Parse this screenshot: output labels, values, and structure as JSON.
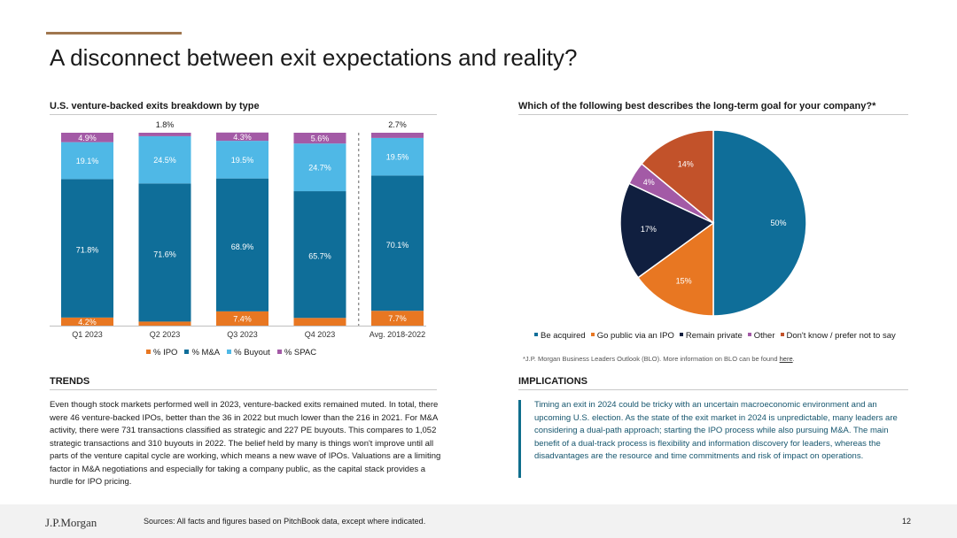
{
  "page": {
    "title": "A disconnect between exit expectations and reality?",
    "page_number": "12"
  },
  "left_chart_heading": "U.S. venture-backed exits breakdown by type",
  "right_chart_heading": "Which of the following best describes the long-term goal for your company?*",
  "trends": {
    "heading": "TRENDS",
    "text": "Even though stock markets performed well in 2023, venture-backed exits remained muted. In total, there were 46 venture-backed IPOs, better than the 36 in 2022 but much lower than the 216 in 2021. For M&A activity, there were 731 transactions classified as strategic and 227 PE buyouts. This compares to 1,052 strategic transactions and 310 buyouts in 2022. The belief held by many is things won't improve until all parts of the venture capital cycle are working, which means a new wave of IPOs. Valuations are a limiting factor in M&A negotiations and especially for taking a company public, as the capital stack provides a hurdle for IPO pricing."
  },
  "implications": {
    "heading": "IMPLICATIONS",
    "text": "Timing an exit in 2024 could be tricky with an uncertain macroeconomic environment and an upcoming U.S. election. As the state of the exit market in 2024 is unpredictable, many leaders are considering a dual-path approach; starting the IPO process while also pursuing M&A. The main benefit of a dual-track process is flexibility and information discovery for leaders, whereas the disadvantages are the resource and time commitments and risk of impact on operations."
  },
  "survey_note": {
    "text": "*J.P. Morgan Business Leaders Outlook (BLO). More information on BLO can be found ",
    "link": "here",
    "end": "."
  },
  "footer": {
    "logo": "J.P.Morgan",
    "sources": "Sources: All facts and figures based on PitchBook data, except where indicated."
  },
  "chart_data": [
    {
      "type": "bar",
      "stacked": true,
      "categories": [
        "Q1 2023",
        "Q2 2023",
        "Q3 2023",
        "Q4 2023",
        "Avg. 2018-2022"
      ],
      "series": [
        {
          "name": "% IPO",
          "color": "#e87722",
          "values": [
            4.2,
            2.1,
            7.4,
            4.0,
            7.7
          ],
          "labels": [
            "4.2%",
            "2.1%",
            "7.4%",
            "4.0%",
            "7.7%"
          ]
        },
        {
          "name": "% M&A",
          "color": "#0f6e99",
          "values": [
            71.8,
            71.6,
            68.9,
            65.7,
            70.1
          ],
          "labels": [
            "71.8%",
            "71.6%",
            "68.9%",
            "65.7%",
            "70.1%"
          ]
        },
        {
          "name": "% Buyout",
          "color": "#4fb8e6",
          "values": [
            19.1,
            24.5,
            19.5,
            24.7,
            19.5
          ],
          "labels": [
            "19.1%",
            "24.5%",
            "19.5%",
            "24.7%",
            "19.5%"
          ]
        },
        {
          "name": "% SPAC",
          "color": "#a35aa6",
          "values": [
            4.9,
            1.8,
            4.3,
            5.6,
            2.7
          ],
          "labels": [
            "4.9%",
            "1.8%",
            "4.3%",
            "5.6%",
            "2.7%"
          ]
        }
      ],
      "ylim": [
        0,
        100
      ],
      "legend_position": "bottom",
      "separator_before_last": true
    },
    {
      "type": "pie",
      "slices": [
        {
          "name": "Be acquired",
          "value": 50,
          "label": "50%",
          "color": "#0f6e99"
        },
        {
          "name": "Go public via an IPO",
          "value": 15,
          "label": "15%",
          "color": "#e87722"
        },
        {
          "name": "Remain private",
          "value": 17,
          "label": "17%",
          "color": "#101f3f"
        },
        {
          "name": "Other",
          "value": 4,
          "label": "4%",
          "color": "#a35aa6"
        },
        {
          "name": "Don't know / prefer not to say",
          "value": 14,
          "label": "14%",
          "color": "#c2522a"
        }
      ],
      "legend_position": "bottom"
    }
  ]
}
